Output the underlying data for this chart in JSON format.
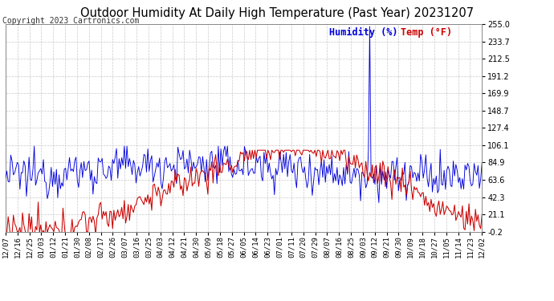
{
  "title": "Outdoor Humidity At Daily High Temperature (Past Year) 20231207",
  "copyright": "Copyright 2023 Cartronics.com",
  "legend_humidity": "Humidity (%)",
  "legend_temp": "Temp (°F)",
  "ylim": [
    -0.2,
    255.0
  ],
  "yticks": [
    -0.2,
    21.1,
    42.3,
    63.6,
    84.9,
    106.1,
    127.4,
    148.7,
    169.9,
    191.2,
    212.5,
    233.7,
    255.0
  ],
  "background_color": "#ffffff",
  "plot_bg_color": "#ffffff",
  "grid_color": "#bbbbbb",
  "humidity_color": "#0000dd",
  "temp_color": "#cc0000",
  "x_labels": [
    "12/07",
    "12/16",
    "12/25",
    "01/03",
    "01/12",
    "01/21",
    "01/30",
    "02/08",
    "02/17",
    "02/26",
    "03/07",
    "03/16",
    "03/25",
    "04/03",
    "04/12",
    "04/21",
    "04/30",
    "05/09",
    "05/18",
    "05/27",
    "06/05",
    "06/14",
    "06/23",
    "07/01",
    "07/11",
    "07/20",
    "07/29",
    "08/07",
    "08/16",
    "08/25",
    "09/03",
    "09/12",
    "09/21",
    "09/30",
    "10/09",
    "10/18",
    "10/27",
    "11/05",
    "11/14",
    "11/23",
    "12/02"
  ],
  "title_fontsize": 10.5,
  "tick_fontsize": 6.5,
  "legend_fontsize": 8.5,
  "copyright_fontsize": 7
}
